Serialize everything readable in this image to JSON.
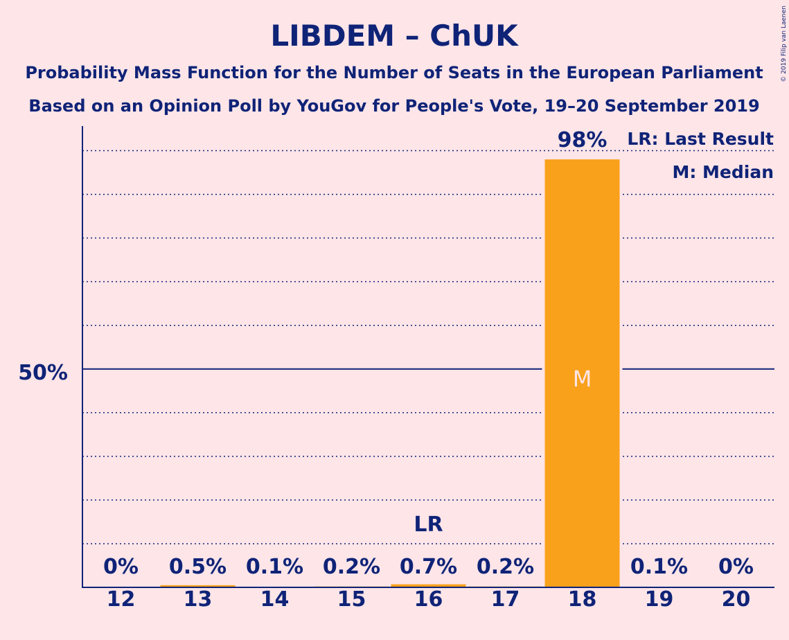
{
  "chart_data": {
    "type": "bar",
    "title": "LIBDEM – ChUK",
    "subtitle_line1": "Probability Mass Function for the Number of Seats in the European Parliament",
    "subtitle_line2": "Based on an Opinion Poll by YouGov for People's Vote, 19–20 September 2019",
    "copyright": "© 2019 Filip van Laenen",
    "categories": [
      "12",
      "13",
      "14",
      "15",
      "16",
      "17",
      "18",
      "19",
      "20"
    ],
    "values": [
      0,
      0.5,
      0.1,
      0.2,
      0.7,
      0.2,
      98,
      0.1,
      0
    ],
    "value_labels": [
      "0%",
      "0.5%",
      "0.1%",
      "0.2%",
      "0.7%",
      "0.2%",
      "98%",
      "0.1%",
      "0%"
    ],
    "ylim": [
      0,
      105
    ],
    "y_tick_label": "50%",
    "y_tick_value": 50,
    "gridline_step": 10,
    "last_result_category": "16",
    "last_result_marker": "LR",
    "median_category": "18",
    "median_marker": "M",
    "legend": {
      "last_result": "LR: Last Result",
      "median": "M: Median",
      "placement": "top-right"
    },
    "colors": {
      "bar": "#f9a11b",
      "text": "#0f2377",
      "axis": "#0f2377",
      "background": "#fde5e8",
      "median_text": "#fde5e8"
    }
  }
}
